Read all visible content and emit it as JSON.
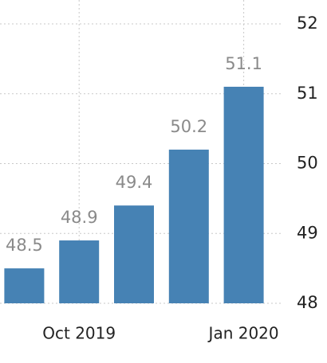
{
  "chart_data": {
    "type": "bar",
    "categories": [
      null,
      "Oct 2019",
      null,
      null,
      "Jan 2020"
    ],
    "values": [
      48.5,
      48.9,
      49.4,
      50.2,
      51.1
    ],
    "color": "#4682b4",
    "ylim": [
      48,
      52
    ],
    "yticks": [
      48,
      49,
      50,
      51,
      52
    ],
    "grid": true
  }
}
